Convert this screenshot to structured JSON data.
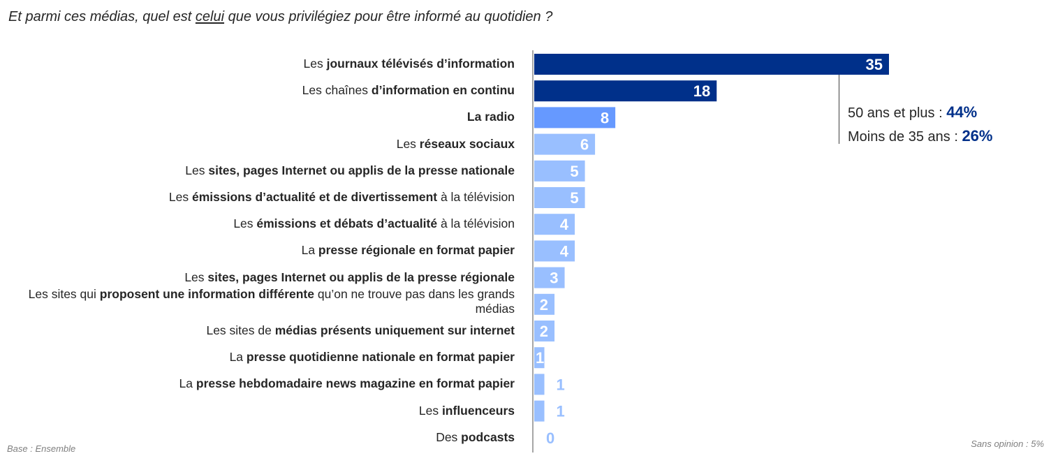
{
  "title": {
    "before": "Et parmi ces médias, quel est ",
    "underlined": "celui",
    "after": " que vous privilégiez pour être informé au quotidien ?"
  },
  "callout": {
    "line1_label": "50 ans et plus : ",
    "line1_value": "44%",
    "line2_label": "Moins de 35 ans : ",
    "line2_value": "26%"
  },
  "footer": {
    "base": "Base : Ensemble",
    "sans_opinion": "Sans opinion : 5%"
  },
  "colors": {
    "dark_blue": "#00308a",
    "mid_blue": "#6699ff",
    "light_blue": "#99bfff",
    "label_light": "#99bfff"
  },
  "chart_data": {
    "type": "bar",
    "orientation": "horizontal",
    "title": "Et parmi ces médias, quel est celui que vous privilégiez pour être informé au quotidien ?",
    "xlabel": "",
    "ylabel": "",
    "xlim": [
      0,
      35
    ],
    "grid": false,
    "unit": "%",
    "categories": [
      [
        {
          "t": "Les ",
          "b": false
        },
        {
          "t": "journaux télévisés d’information",
          "b": true
        }
      ],
      [
        {
          "t": "Les chaînes ",
          "b": false
        },
        {
          "t": "d’information en continu",
          "b": true
        }
      ],
      [
        {
          "t": "La radio",
          "b": true
        }
      ],
      [
        {
          "t": "Les ",
          "b": false
        },
        {
          "t": "réseaux sociaux",
          "b": true
        }
      ],
      [
        {
          "t": "Les ",
          "b": false
        },
        {
          "t": "sites, pages Internet ou applis de la presse nationale",
          "b": true
        }
      ],
      [
        {
          "t": "Les ",
          "b": false
        },
        {
          "t": "émissions d’actualité et de divertissement",
          "b": true
        },
        {
          "t": " à la télévision",
          "b": false
        }
      ],
      [
        {
          "t": "Les ",
          "b": false
        },
        {
          "t": "émissions et débats d’actualité",
          "b": true
        },
        {
          "t": " à la télévision",
          "b": false
        }
      ],
      [
        {
          "t": "La ",
          "b": false
        },
        {
          "t": "presse régionale en format papier",
          "b": true
        }
      ],
      [
        {
          "t": "Les ",
          "b": false
        },
        {
          "t": "sites, pages Internet ou applis de la presse régionale",
          "b": true
        }
      ],
      [
        {
          "t": "Les sites qui ",
          "b": false
        },
        {
          "t": "proposent une information différente",
          "b": true
        },
        {
          "t": " qu’on ne trouve pas dans les grands médias",
          "b": false
        }
      ],
      [
        {
          "t": "Les sites de ",
          "b": false
        },
        {
          "t": "médias présents uniquement sur internet",
          "b": true
        }
      ],
      [
        {
          "t": "La ",
          "b": false
        },
        {
          "t": "presse quotidienne nationale en format papier",
          "b": true
        }
      ],
      [
        {
          "t": "La ",
          "b": false
        },
        {
          "t": "presse hebdomadaire news magazine en format papier",
          "b": true
        }
      ],
      [
        {
          "t": "Les ",
          "b": false
        },
        {
          "t": "influenceurs",
          "b": true
        }
      ],
      [
        {
          "t": "Des ",
          "b": false
        },
        {
          "t": "podcasts",
          "b": true
        }
      ]
    ],
    "category_names": [
      "Les journaux télévisés d’information",
      "Les chaînes d’information en continu",
      "La radio",
      "Les réseaux sociaux",
      "Les sites, pages Internet ou applis de la presse nationale",
      "Les émissions d’actualité et de divertissement à la télévision",
      "Les émissions et débats d’actualité à la télévision",
      "La presse régionale en format papier",
      "Les sites, pages Internet ou applis de la presse régionale",
      "Les sites qui proposent une information différente qu’on ne trouve pas dans les grands médias",
      "Les sites de médias présents uniquement sur internet",
      "La presse quotidienne nationale en format papier",
      "La presse hebdomadaire news magazine en format papier",
      "Les influenceurs",
      "Des podcasts"
    ],
    "values": [
      35,
      18,
      8,
      6,
      5,
      5,
      4,
      4,
      3,
      2,
      2,
      1,
      1,
      1,
      0
    ],
    "value_labels": [
      "35",
      "18",
      "8",
      "6",
      "5",
      "5",
      "4",
      "4",
      "3",
      "2",
      "2",
      "1",
      "1",
      "1",
      "0"
    ],
    "bar_colors": [
      "dark_blue",
      "dark_blue",
      "mid_blue",
      "light_blue",
      "light_blue",
      "light_blue",
      "light_blue",
      "light_blue",
      "light_blue",
      "light_blue",
      "light_blue",
      "light_blue",
      "light_blue",
      "light_blue",
      "light_blue"
    ],
    "annotation": "50 ans et plus : 44% / Moins de 35 ans : 26%",
    "footnotes": [
      "Base : Ensemble",
      "Sans opinion : 5%"
    ]
  }
}
